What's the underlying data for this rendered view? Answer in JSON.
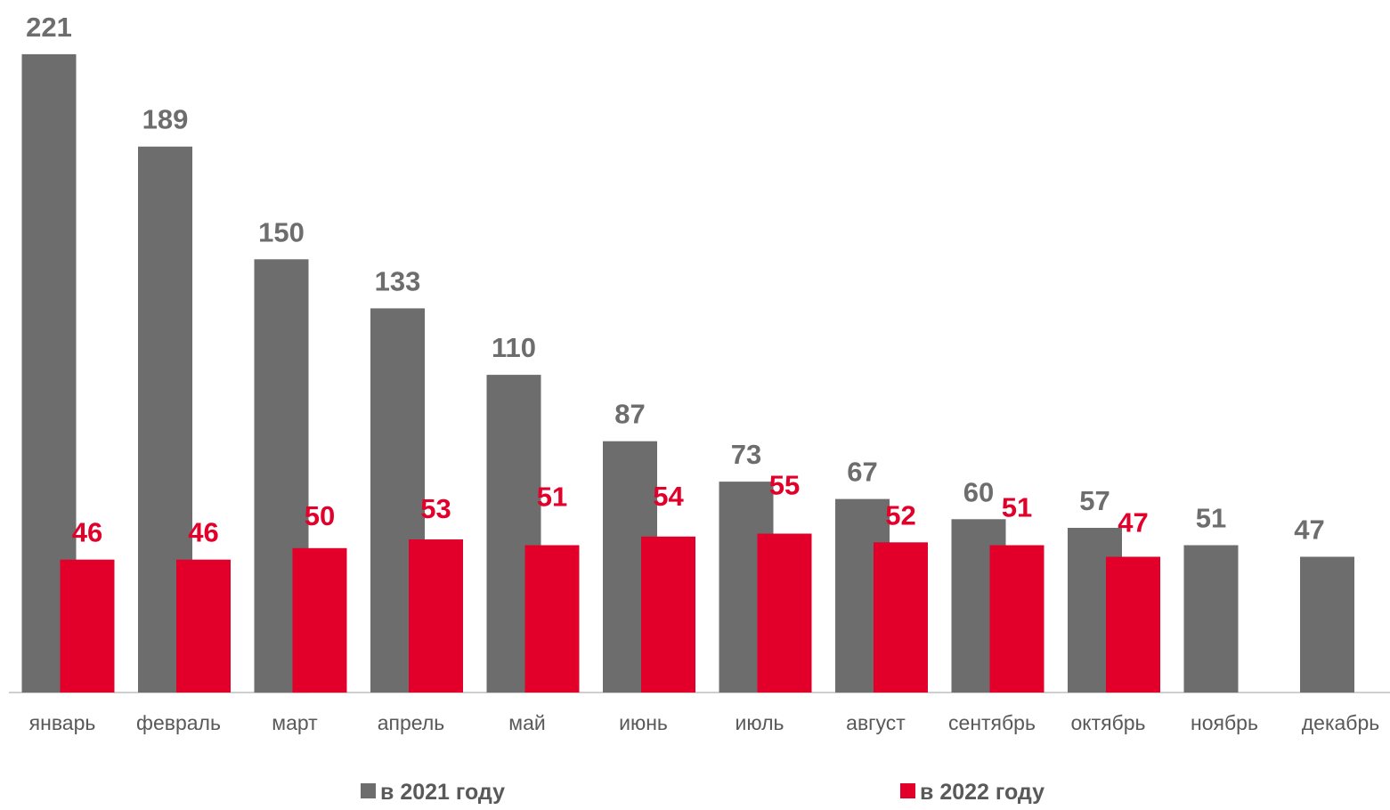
{
  "chart_data": {
    "type": "bar",
    "categories": [
      "январь",
      "февраль",
      "март",
      "апрель",
      "май",
      "июнь",
      "июль",
      "август",
      "сентябрь",
      "октябрь",
      "ноябрь",
      "декабрь"
    ],
    "series": [
      {
        "name": "в 2021 году",
        "color": "#6d6d6d",
        "values": [
          221,
          189,
          150,
          133,
          110,
          87,
          73,
          67,
          60,
          57,
          51,
          47
        ]
      },
      {
        "name": "в 2022 году",
        "color": "#e2002b",
        "values": [
          46,
          46,
          50,
          53,
          51,
          54,
          55,
          52,
          51,
          47,
          null,
          null
        ]
      }
    ],
    "ylim": [
      0,
      240
    ],
    "grid": false,
    "legend_position": "bottom",
    "title": "",
    "xlabel": "",
    "ylabel": ""
  }
}
